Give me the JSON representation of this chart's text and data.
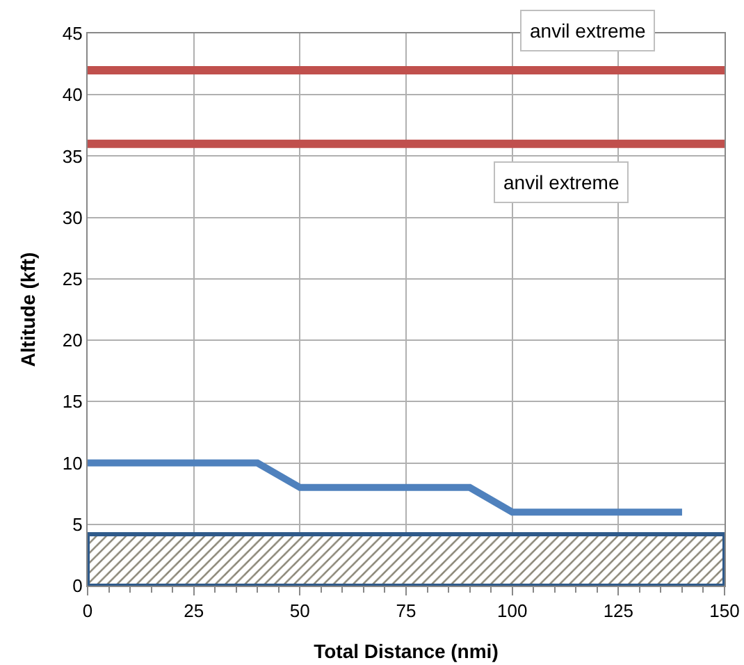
{
  "chart_data": {
    "type": "line",
    "xlabel": "Total Distance (nmi)",
    "ylabel": "Altitude (kft)",
    "x": [
      0,
      40,
      50,
      90,
      100,
      140
    ],
    "series": [
      {
        "color": "#4f81bd",
        "values": [
          10,
          10,
          8,
          8,
          6,
          6
        ]
      }
    ],
    "xlim": [
      0,
      150
    ],
    "xticks": [
      0,
      25,
      50,
      75,
      100,
      125,
      150
    ],
    "ylim": [
      0,
      45
    ],
    "yticks": [
      0,
      5,
      10,
      15,
      20,
      25,
      30,
      35,
      40,
      45
    ],
    "grid": true,
    "marker": "none",
    "line_style": "solid",
    "ref_lines": [
      {
        "axis": "y",
        "value": 42,
        "label": "anvil extreme",
        "color": "#c0504d"
      },
      {
        "axis": "y",
        "value": 36,
        "label": "anvil extreme",
        "color": "#c0504d"
      }
    ],
    "bands": [
      {
        "axis": "y",
        "from": 0,
        "to": 4.2,
        "color": "#2f5a8a"
      }
    ]
  }
}
